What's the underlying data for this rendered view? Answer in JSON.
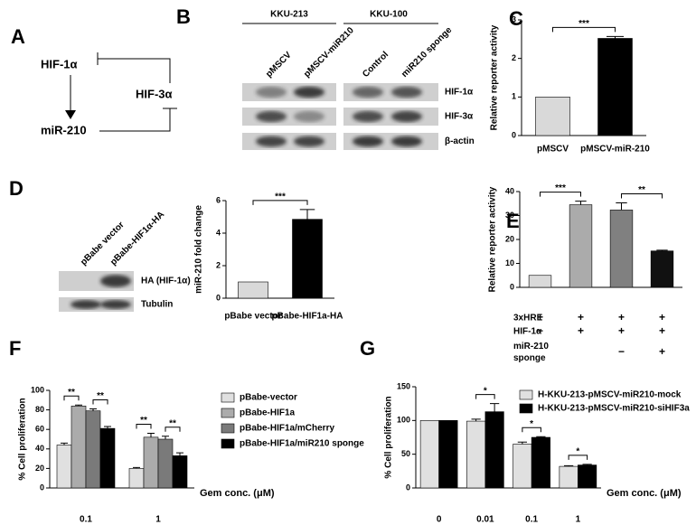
{
  "panel_labels": [
    "A",
    "B",
    "C",
    "D",
    "E",
    "F",
    "G"
  ],
  "diagram": {
    "nodes": [
      "HIF-1α",
      "HIF-3α",
      "miR-210"
    ]
  },
  "blot_b": {
    "groups": [
      "KKU-213",
      "KKU-100"
    ],
    "lanes": [
      "pMSCV",
      "pMSCV-miR210",
      "Control",
      "miR210 sponge"
    ],
    "rows": [
      "HIF-1α",
      "HIF-3α",
      "β-actin"
    ]
  },
  "blot_d": {
    "lanes": [
      "pBabe vector",
      "pBabe-HIF1α-HA"
    ],
    "rows": [
      "HA (HIF-1α)",
      "Tubulin"
    ]
  },
  "chart_data": [
    {
      "type": "bar",
      "y_label": "Relative reporter activity",
      "categories": [
        "pMSCV",
        "pMSCV-miR-210"
      ],
      "values": [
        1,
        2.52
      ],
      "errors": [
        null,
        0.05
      ],
      "colors": [
        "#d9d9d9",
        "#000000"
      ],
      "ylim": [
        0,
        3
      ],
      "yticks": [
        0,
        1,
        2,
        3
      ],
      "annotations": [
        "***"
      ]
    },
    {
      "type": "bar",
      "y_label": "miR-210 fold change",
      "categories": [
        "pBabe vector",
        "pBabe-HIF1a-HA"
      ],
      "values": [
        1,
        4.85
      ],
      "errors": [
        null,
        0.6
      ],
      "colors": [
        "#d9d9d9",
        "#000000"
      ],
      "ylim": [
        0,
        6
      ],
      "yticks": [
        0,
        2,
        4,
        6
      ],
      "annotations": [
        "***"
      ]
    },
    {
      "type": "bar",
      "y_label": "Relative reporter activity",
      "categories": [
        null,
        null,
        null,
        null
      ],
      "values": [
        5,
        34.5,
        32.3,
        15.2
      ],
      "errors": [
        null,
        1.5,
        3,
        0.3
      ],
      "colors": [
        "#d9d9d9",
        "#ababab",
        "#808080",
        "#111111"
      ],
      "ylim": [
        0,
        40
      ],
      "yticks": [
        0,
        10,
        20,
        30,
        40
      ],
      "annotations": [
        "***",
        "**"
      ],
      "table": {
        "row_labels": [
          "3xHRE",
          "HIF-1α",
          "miR-210 sponge"
        ],
        "cells": [
          [
            "+",
            "+",
            "+",
            "+"
          ],
          [
            "−",
            "+",
            "+",
            "+"
          ],
          [
            null,
            null,
            "−",
            "+"
          ]
        ]
      }
    },
    {
      "type": "bar",
      "y_label": "% Cell proliferation",
      "x_label": "Gem conc. (μM)",
      "categories": [
        "0.1",
        "1"
      ],
      "series": [
        {
          "name": "pBabe-vector",
          "color": "#e0e0e0",
          "values": [
            44,
            20
          ],
          "errors": [
            2,
            1
          ]
        },
        {
          "name": "pBabe-HIF1a",
          "color": "#ababab",
          "values": [
            84,
            52
          ],
          "errors": [
            1,
            4
          ]
        },
        {
          "name": "pBabe-HIF1a/mCherry",
          "color": "#7a7a7a",
          "values": [
            79,
            50
          ],
          "errors": [
            2,
            3
          ]
        },
        {
          "name": "pBabe-HIF1a/miR210 sponge",
          "color": "#000000",
          "values": [
            61,
            33
          ],
          "errors": [
            2,
            3
          ]
        }
      ],
      "ylim": [
        0,
        100
      ],
      "yticks": [
        0,
        20,
        40,
        60,
        80,
        100
      ],
      "annotations": [
        "**",
        "**",
        "**",
        "**"
      ]
    },
    {
      "type": "bar",
      "y_label": "% Cell proliferation",
      "x_label": "Gem conc. (μM)",
      "categories": [
        "0",
        "0.01",
        "0.1",
        "1"
      ],
      "series": [
        {
          "name": "H-KKU-213-pMSCV-miR210-mock",
          "color": "#e0e0e0",
          "values": [
            100,
            99,
            65,
            32
          ],
          "errors": [
            null,
            3,
            3,
            1
          ]
        },
        {
          "name": "H-KKU-213-pMSCV-miR210-siHIF3a",
          "color": "#000000",
          "values": [
            100,
            113,
            75,
            34
          ],
          "errors": [
            null,
            12,
            1,
            1
          ]
        }
      ],
      "ylim": [
        0,
        150
      ],
      "yticks": [
        0,
        50,
        100,
        150
      ],
      "annotations": [
        "*",
        "*",
        "*"
      ]
    }
  ]
}
